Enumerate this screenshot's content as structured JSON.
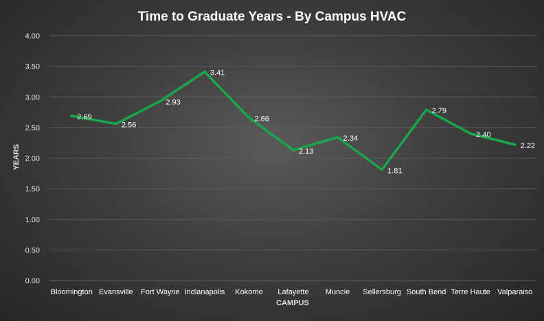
{
  "chart_data": {
    "type": "line",
    "title": "Time to Graduate Years - By Campus HVAC",
    "xlabel": "CAMPUS",
    "ylabel": "YEARS",
    "categories": [
      "Bloomington",
      "Evansville",
      "Fort Wayne",
      "Indianapolis",
      "Kokomo",
      "Lafayette",
      "Muncie",
      "Sellersburg",
      "South Bend",
      "Terre Haute",
      "Valparaiso"
    ],
    "series": [
      {
        "values": [
          2.69,
          2.56,
          2.93,
          3.41,
          2.66,
          2.13,
          2.34,
          1.81,
          2.79,
          2.4,
          2.22
        ]
      }
    ],
    "data_labels": [
      "2.69",
      "2.56",
      "2.93",
      "3.41",
      "2.66",
      "2.13",
      "2.34",
      "1.81",
      "2.79",
      "2.40",
      "2.22"
    ],
    "y_ticks": [
      "0.00",
      "0.50",
      "1.00",
      "1.50",
      "2.00",
      "2.50",
      "3.00",
      "3.50",
      "4.00"
    ],
    "ylim": [
      0,
      4
    ],
    "grid": true,
    "line_color": "#1aa64a",
    "background_color": "#3a3a3a"
  }
}
